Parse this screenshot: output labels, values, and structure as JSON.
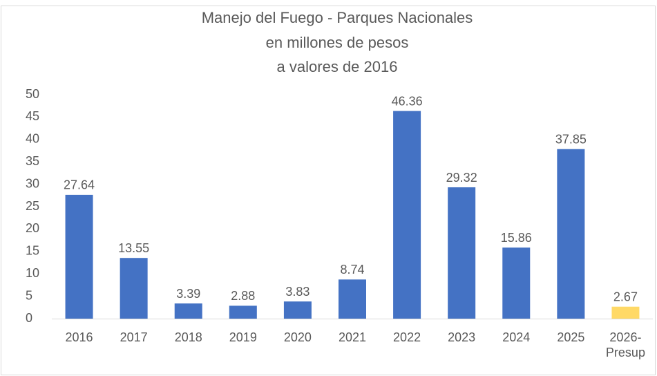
{
  "chart_data": {
    "type": "bar",
    "title": [
      "Manejo del Fuego - Parques Nacionales",
      "en millones de pesos",
      "a valores de 2016"
    ],
    "categories": [
      "2016",
      "2017",
      "2018",
      "2019",
      "2020",
      "2021",
      "2022",
      "2023",
      "2024",
      "2025",
      "2026-Presup"
    ],
    "values": [
      27.64,
      13.55,
      3.39,
      2.88,
      3.83,
      8.74,
      46.36,
      29.32,
      15.86,
      37.85,
      2.67
    ],
    "colors": [
      "#4472c4",
      "#4472c4",
      "#4472c4",
      "#4472c4",
      "#4472c4",
      "#4472c4",
      "#4472c4",
      "#4472c4",
      "#4472c4",
      "#4472c4",
      "#ffd966"
    ],
    "ylim": [
      0,
      50
    ],
    "yticks": [
      0,
      5,
      10,
      15,
      20,
      25,
      30,
      35,
      40,
      45,
      50
    ],
    "grid": false
  }
}
